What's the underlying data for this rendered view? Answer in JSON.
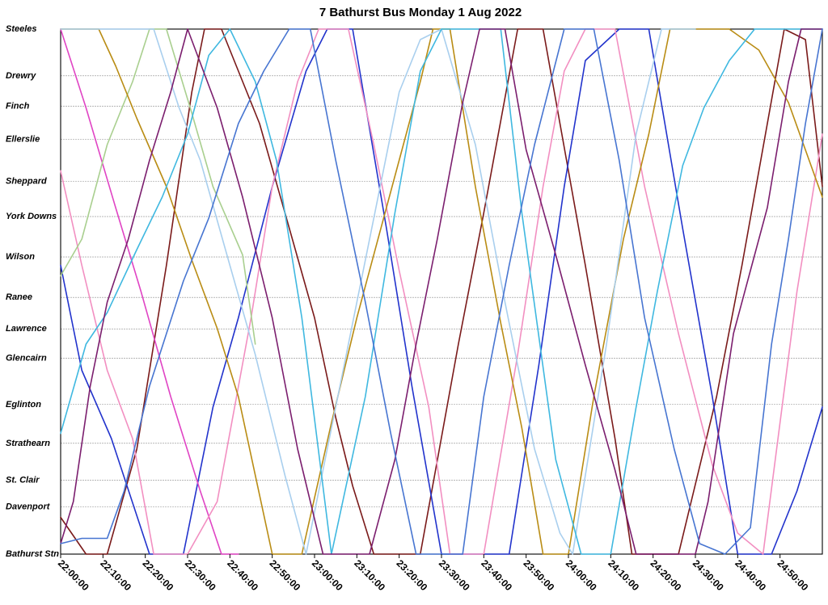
{
  "chart_data": {
    "type": "line",
    "title": "7 Bathurst Bus Monday 1 Aug 2022",
    "xlabel": "",
    "ylabel": "",
    "x_range_minutes_after_midnight": [
      1320,
      1500
    ],
    "x_tick_labels": [
      "22:00:00",
      "22:10:00",
      "22:20:00",
      "22:30:00",
      "22:40:00",
      "22:50:00",
      "23:00:00",
      "23:10:00",
      "23:20:00",
      "23:30:00",
      "23:40:00",
      "23:50:00",
      "24:00:00",
      "24:10:00",
      "24:20:00",
      "24:30:00",
      "24:40:00",
      "24:50:00"
    ],
    "stops": [
      {
        "name": "Steeles",
        "pos": 0.0
      },
      {
        "name": "Drewry",
        "pos": 0.089
      },
      {
        "name": "Finch",
        "pos": 0.147
      },
      {
        "name": "Ellerslie",
        "pos": 0.21
      },
      {
        "name": "Sheppard",
        "pos": 0.29
      },
      {
        "name": "York Downs",
        "pos": 0.357
      },
      {
        "name": "Wilson",
        "pos": 0.434
      },
      {
        "name": "Ranee",
        "pos": 0.511
      },
      {
        "name": "Lawrence",
        "pos": 0.571
      },
      {
        "name": "Glencairn",
        "pos": 0.627
      },
      {
        "name": "Eglinton",
        "pos": 0.715
      },
      {
        "name": "Strathearn",
        "pos": 0.789
      },
      {
        "name": "St. Clair",
        "pos": 0.859
      },
      {
        "name": "Davenport",
        "pos": 0.91
      },
      {
        "name": "Bathurst Stn",
        "pos": 1.0
      }
    ],
    "grid": true,
    "legend": "none",
    "series": [
      {
        "color": "#7a1a1a",
        "points": [
          [
            1320,
            0.93
          ],
          [
            1326,
            1.0
          ],
          [
            1331,
            1.0
          ],
          [
            1338,
            0.8
          ],
          [
            1345,
            0.45
          ],
          [
            1351,
            0.12
          ],
          [
            1354,
            0.0
          ],
          [
            1358,
            0.0
          ],
          [
            1364,
            0.12
          ],
          [
            1367,
            0.18
          ],
          [
            1373,
            0.35
          ],
          [
            1380,
            0.55
          ],
          [
            1385,
            0.74
          ],
          [
            1389,
            0.87
          ],
          [
            1394,
            1.0
          ],
          [
            1405,
            1.0
          ],
          [
            1414,
            0.6
          ],
          [
            1420,
            0.35
          ],
          [
            1428,
            0.0
          ],
          [
            1434,
            0.0
          ],
          [
            1444,
            0.45
          ],
          [
            1451,
            0.78
          ],
          [
            1455,
            1.0
          ],
          [
            1466,
            1.0
          ],
          [
            1475,
            0.7
          ],
          [
            1481,
            0.45
          ],
          [
            1491,
            0.0
          ],
          [
            1496,
            0.02
          ],
          [
            1500,
            0.3
          ]
        ]
      },
      {
        "color": "#2233cc",
        "points": [
          [
            1320,
            0.45
          ],
          [
            1325,
            0.65
          ],
          [
            1332,
            0.78
          ],
          [
            1341,
            1.0
          ],
          [
            1349,
            1.0
          ],
          [
            1356,
            0.72
          ],
          [
            1362,
            0.55
          ],
          [
            1370,
            0.3
          ],
          [
            1378,
            0.08
          ],
          [
            1383,
            0.0
          ],
          [
            1389,
            0.0
          ],
          [
            1397,
            0.38
          ],
          [
            1403,
            0.68
          ],
          [
            1410,
            1.0
          ],
          [
            1426,
            1.0
          ],
          [
            1433,
            0.64
          ],
          [
            1439,
            0.3
          ],
          [
            1444,
            0.06
          ],
          [
            1452,
            0.0
          ],
          [
            1459,
            0.0
          ],
          [
            1467,
            0.38
          ],
          [
            1474,
            0.7
          ],
          [
            1480,
            1.0
          ],
          [
            1488,
            1.0
          ],
          [
            1494,
            0.88
          ],
          [
            1500,
            0.72
          ]
        ]
      },
      {
        "color": "#e044c4",
        "points": [
          [
            1320,
            0.0
          ],
          [
            1326,
            0.15
          ],
          [
            1333,
            0.34
          ],
          [
            1339,
            0.5
          ],
          [
            1346,
            0.7
          ],
          [
            1353,
            0.88
          ],
          [
            1358,
            1.0
          ],
          [
            1362,
            1.0
          ]
        ]
      },
      {
        "color": "#f28fc1",
        "points": [
          [
            1320,
            0.27
          ],
          [
            1325,
            0.45
          ],
          [
            1331,
            0.65
          ],
          [
            1337,
            0.78
          ],
          [
            1342,
            1.0
          ],
          [
            1350,
            1.0
          ],
          [
            1357,
            0.9
          ],
          [
            1365,
            0.55
          ],
          [
            1370,
            0.3
          ],
          [
            1376,
            0.1
          ],
          [
            1381,
            0.0
          ],
          [
            1388,
            0.0
          ],
          [
            1394,
            0.22
          ],
          [
            1400,
            0.46
          ],
          [
            1407,
            0.72
          ],
          [
            1412,
            1.0
          ],
          [
            1420,
            1.0
          ],
          [
            1428,
            0.62
          ],
          [
            1434,
            0.3
          ],
          [
            1439,
            0.08
          ],
          [
            1444,
            0.0
          ],
          [
            1451,
            0.0
          ],
          [
            1458,
            0.3
          ],
          [
            1466,
            0.58
          ],
          [
            1474,
            0.83
          ],
          [
            1480,
            0.96
          ],
          [
            1486,
            1.0
          ],
          [
            1494,
            0.5
          ],
          [
            1500,
            0.2
          ]
        ]
      },
      {
        "color": "#a9cf8f",
        "points": [
          [
            1320,
            0.47
          ],
          [
            1325,
            0.4
          ],
          [
            1331,
            0.22
          ],
          [
            1337,
            0.1
          ],
          [
            1341,
            0.0
          ],
          [
            1345,
            0.0
          ],
          [
            1351,
            0.16
          ],
          [
            1356,
            0.3
          ],
          [
            1363,
            0.43
          ],
          [
            1366,
            0.6
          ]
        ]
      },
      {
        "color": "#b98c14",
        "points": [
          [
            1320,
            0.0
          ],
          [
            1329,
            0.0
          ],
          [
            1333,
            0.07
          ],
          [
            1338,
            0.17
          ],
          [
            1345,
            0.3
          ],
          [
            1351,
            0.44
          ],
          [
            1357,
            0.57
          ],
          [
            1362,
            0.7
          ],
          [
            1370,
            1.0
          ],
          [
            1377,
            1.0
          ],
          [
            1384,
            0.75
          ],
          [
            1390,
            0.55
          ],
          [
            1399,
            0.28
          ],
          [
            1405,
            0.1
          ],
          [
            1408,
            0.0
          ],
          [
            1412,
            0.0
          ],
          [
            1418,
            0.3
          ],
          [
            1424,
            0.56
          ],
          [
            1429,
            0.76
          ],
          [
            1434,
            1.0
          ],
          [
            1440,
            1.0
          ],
          [
            1446,
            0.7
          ],
          [
            1453,
            0.4
          ],
          [
            1459,
            0.2
          ],
          [
            1464,
            0.0
          ],
          [
            1471,
            0.0
          ],
          [
            1478,
            0.0
          ],
          [
            1485,
            0.04
          ],
          [
            1492,
            0.14
          ],
          [
            1500,
            0.32
          ]
        ]
      },
      {
        "color": "#a9cfee",
        "points": [
          [
            1320,
            0.0
          ],
          [
            1327,
            0.0
          ],
          [
            1335,
            0.0
          ],
          [
            1342,
            0.0
          ],
          [
            1348,
            0.15
          ],
          [
            1353,
            0.25
          ],
          [
            1360,
            0.45
          ],
          [
            1366,
            0.62
          ],
          [
            1373,
            0.85
          ],
          [
            1378,
            1.0
          ],
          [
            1386,
            0.68
          ],
          [
            1394,
            0.36
          ],
          [
            1400,
            0.12
          ],
          [
            1405,
            0.02
          ],
          [
            1410,
            0.0
          ],
          [
            1418,
            0.22
          ],
          [
            1425,
            0.52
          ],
          [
            1432,
            0.8
          ],
          [
            1438,
            0.96
          ],
          [
            1441,
            1.0
          ],
          [
            1449,
            0.6
          ],
          [
            1456,
            0.2
          ],
          [
            1462,
            0.0
          ],
          [
            1470,
            0.0
          ]
        ]
      },
      {
        "color": "#3fb8e0",
        "points": [
          [
            1320,
            0.77
          ],
          [
            1326,
            0.6
          ],
          [
            1331,
            0.54
          ],
          [
            1338,
            0.42
          ],
          [
            1344,
            0.32
          ],
          [
            1350,
            0.2
          ],
          [
            1355,
            0.05
          ],
          [
            1360,
            0.0
          ],
          [
            1366,
            0.1
          ],
          [
            1371,
            0.25
          ],
          [
            1377,
            0.55
          ],
          [
            1384,
            1.0
          ],
          [
            1392,
            0.7
          ],
          [
            1399,
            0.35
          ],
          [
            1405,
            0.08
          ],
          [
            1410,
            0.0
          ],
          [
            1417,
            0.0
          ],
          [
            1424,
            0.0
          ],
          [
            1429,
            0.35
          ],
          [
            1437,
            0.82
          ],
          [
            1443,
            1.0
          ],
          [
            1450,
            1.0
          ],
          [
            1456,
            0.72
          ],
          [
            1461,
            0.5
          ],
          [
            1467,
            0.26
          ],
          [
            1472,
            0.15
          ],
          [
            1478,
            0.06
          ],
          [
            1484,
            0.0
          ],
          [
            1495,
            0.0
          ],
          [
            1500,
            0.0
          ]
        ]
      },
      {
        "color": "#7b1e6e",
        "points": [
          [
            1320,
            0.98
          ],
          [
            1323,
            0.9
          ],
          [
            1327,
            0.68
          ],
          [
            1331,
            0.52
          ],
          [
            1336,
            0.4
          ],
          [
            1341,
            0.25
          ],
          [
            1346,
            0.12
          ],
          [
            1350,
            0.0
          ],
          [
            1357,
            0.15
          ],
          [
            1363,
            0.32
          ],
          [
            1370,
            0.55
          ],
          [
            1376,
            0.8
          ],
          [
            1382,
            1.0
          ],
          [
            1393,
            1.0
          ],
          [
            1399,
            0.82
          ],
          [
            1404,
            0.6
          ],
          [
            1409,
            0.4
          ],
          [
            1415,
            0.14
          ],
          [
            1419,
            0.0
          ],
          [
            1425,
            0.0
          ],
          [
            1430,
            0.23
          ],
          [
            1437,
            0.43
          ],
          [
            1444,
            0.64
          ],
          [
            1451,
            0.84
          ],
          [
            1456,
            1.0
          ],
          [
            1470,
            1.0
          ],
          [
            1473,
            0.9
          ],
          [
            1479,
            0.58
          ],
          [
            1487,
            0.34
          ],
          [
            1492,
            0.1
          ],
          [
            1495,
            0.0
          ],
          [
            1500,
            0.0
          ]
        ]
      },
      {
        "color": "#4775d1",
        "points": [
          [
            1320,
            0.98
          ],
          [
            1325,
            0.97
          ],
          [
            1331,
            0.97
          ],
          [
            1335,
            0.88
          ],
          [
            1341,
            0.68
          ],
          [
            1349,
            0.48
          ],
          [
            1355,
            0.36
          ],
          [
            1362,
            0.18
          ],
          [
            1368,
            0.08
          ],
          [
            1374,
            0.0
          ],
          [
            1379,
            0.0
          ],
          [
            1385,
            0.25
          ],
          [
            1392,
            0.52
          ],
          [
            1398,
            0.77
          ],
          [
            1404,
            1.0
          ],
          [
            1415,
            1.0
          ],
          [
            1420,
            0.7
          ],
          [
            1426,
            0.45
          ],
          [
            1432,
            0.22
          ],
          [
            1439,
            0.0
          ],
          [
            1446,
            0.0
          ],
          [
            1452,
            0.25
          ],
          [
            1458,
            0.55
          ],
          [
            1465,
            0.8
          ],
          [
            1471,
            0.98
          ],
          [
            1477,
            1.0
          ],
          [
            1483,
            0.95
          ],
          [
            1488,
            0.6
          ],
          [
            1492,
            0.4
          ],
          [
            1496,
            0.18
          ],
          [
            1500,
            0.0
          ]
        ]
      }
    ]
  }
}
